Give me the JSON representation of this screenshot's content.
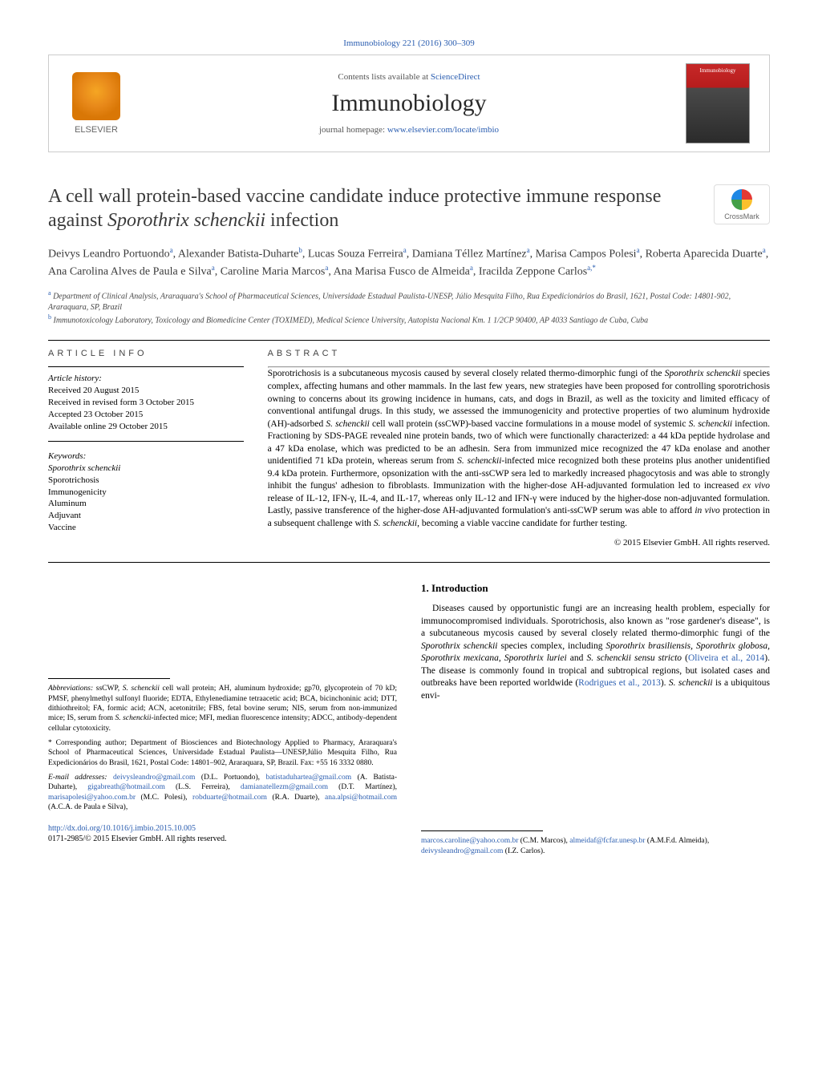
{
  "citation": "Immunobiology 221 (2016) 300–309",
  "header": {
    "contents_prefix": "Contents lists available at ",
    "contents_link": "ScienceDirect",
    "journal": "Immunobiology",
    "homepage_prefix": "journal homepage: ",
    "homepage_url": "www.elsevier.com/locate/imbio",
    "publisher": "ELSEVIER",
    "cover_label": "Immunobiology"
  },
  "title_part1": "A cell wall protein-based vaccine candidate induce protective immune response against ",
  "title_italic": "Sporothrix schenckii",
  "title_part2": " infection",
  "crossmark": "CrossMark",
  "authors_html": "Deivys Leandro Portuondo<sup>a</sup>, Alexander Batista-Duharte<sup>b</sup>, Lucas Souza Ferreira<sup>a</sup>, Damiana Téllez Martínez<sup>a</sup>, Marisa Campos Polesi<sup>a</sup>, Roberta Aparecida Duarte<sup>a</sup>, Ana Carolina Alves de Paula e Silva<sup>a</sup>, Caroline Maria Marcos<sup>a</sup>, Ana Marisa Fusco de Almeida<sup>a</sup>, Iracilda Zeppone Carlos<sup>a,*</sup>",
  "affiliations": [
    {
      "sup": "a",
      "text": "Department of Clinical Analysis, Araraquara's School of Pharmaceutical Sciences, Universidade Estadual Paulista-UNESP, Júlio Mesquita Filho, Rua Expedicionários do Brasil, 1621, Postal Code: 14801-902, Araraquara, SP, Brazil"
    },
    {
      "sup": "b",
      "text": "Immunotoxicology Laboratory, Toxicology and Biomedicine Center (TOXIMED), Medical Science University, Autopista Nacional Km. 1 1/2CP 90400, AP 4033 Santiago de Cuba, Cuba"
    }
  ],
  "info_label": "article info",
  "abstract_label": "abstract",
  "history": {
    "label": "Article history:",
    "items": [
      "Received 20 August 2015",
      "Received in revised form 3 October 2015",
      "Accepted 23 October 2015",
      "Available online 29 October 2015"
    ]
  },
  "keywords": {
    "label": "Keywords:",
    "items": [
      {
        "text": "Sporothrix schenckii",
        "italic": true
      },
      {
        "text": "Sporotrichosis",
        "italic": false
      },
      {
        "text": "Immunogenicity",
        "italic": false
      },
      {
        "text": "Aluminum",
        "italic": false
      },
      {
        "text": "Adjuvant",
        "italic": false
      },
      {
        "text": "Vaccine",
        "italic": false
      }
    ]
  },
  "abstract": "Sporotrichosis is a subcutaneous mycosis caused by several closely related thermo-dimorphic fungi of the <span class=\"italic\">Sporothrix schenckii</span> species complex, affecting humans and other mammals. In the last few years, new strategies have been proposed for controlling sporotrichosis owning to concerns about its growing incidence in humans, cats, and dogs in Brazil, as well as the toxicity and limited efficacy of conventional antifungal drugs. In this study, we assessed the immunogenicity and protective properties of two aluminum hydroxide (AH)-adsorbed <span class=\"italic\">S. schenckii</span> cell wall protein (ssCWP)-based vaccine formulations in a mouse model of systemic <span class=\"italic\">S. schenckii</span> infection. Fractioning by SDS-PAGE revealed nine protein bands, two of which were functionally characterized: a 44 kDa peptide hydrolase and a 47 kDa enolase, which was predicted to be an adhesin. Sera from immunized mice recognized the 47 kDa enolase and another unidentified 71 kDa protein, whereas serum from <span class=\"italic\">S. schenckii</span>-infected mice recognized both these proteins plus another unidentified 9.4 kDa protein. Furthermore, opsonization with the anti-ssCWP sera led to markedly increased phagocytosis and was able to strongly inhibit the fungus' adhesion to fibroblasts. Immunization with the higher-dose AH-adjuvanted formulation led to increased <span class=\"italic\">ex vivo</span> release of IL-12, IFN-γ, IL-4, and IL-17, whereas only IL-12 and IFN-γ were induced by the higher-dose non-adjuvanted formulation. Lastly, passive transference of the higher-dose AH-adjuvanted formulation's anti-ssCWP serum was able to afford <span class=\"italic\">in vivo</span> protection in a subsequent challenge with <span class=\"italic\">S. schenckii</span>, becoming a viable vaccine candidate for further testing.",
  "copyright": "© 2015 Elsevier GmbH. All rights reserved.",
  "abbrev_label": "Abbreviations:",
  "abbrev_text": " ssCWP, <span class=\"italic\">S. schenckii</span> cell wall protein; AH, aluminum hydroxide; gp70, glycoprotein of 70 kD; PMSF, phenylmethyl sulfonyl fluoride; EDTA, Ethylenediamine tetraacetic acid; BCA, bicinchoninic acid; DTT, dithiothreitol; FA, formic acid; ACN, acetonitrile; FBS, fetal bovine serum; NIS, serum from non-immunized mice; IS, serum from <span class=\"italic\">S. schenckii</span>-infected mice; MFI, median fluorescence intensity; ADCC, antibody-dependent cellular cytotoxicity.",
  "corresponding": "* Corresponding author; Department of Biosciences and Biotechnology Applied to Pharmacy, Araraquara's School of Pharmaceutical Sciences, Universidade Estadual Paulista—UNESP,Júlio Mesquita Filho, Rua Expedicionários do Brasil, 1621, Postal Code: 14801–902, Araraquara, SP, Brazil. Fax: +55 16 3332 0880.",
  "email_label": "E-mail addresses:",
  "emails_left": " <a>deivysleandro@gmail.com</a> (D.L. Portuondo), <a>batistaduhartea@gmail.com</a> (A. Batista-Duharte), <a>gigabreath@hotmail.com</a> (L.S. Ferreira), <a>damianatellezm@gmail.com</a> (D.T. Martínez), <a>marisapolesi@yahoo.com.br</a> (M.C. Polesi), <a>robduarte@hotmail.com</a> (R.A. Duarte), <a>ana.alpsi@hotmail.com</a> (A.C.A. de Paula e Silva),",
  "emails_right": "<a>marcos.caroline@yahoo.com.br</a> (C.M. Marcos), <a>almeidaf@fcfar.unesp.br</a> (A.M.F.d. Almeida), <a>deivysleandro@gmail.com</a> (I.Z. Carlos).",
  "doi": "http://dx.doi.org/10.1016/j.imbio.2015.10.005",
  "issn_line": "0171-2985/© 2015 Elsevier GmbH. All rights reserved.",
  "intro": {
    "heading": "1. Introduction",
    "text": "Diseases caused by opportunistic fungi are an increasing health problem, especially for immunocompromised individuals. Sporotrichosis, also known as \"rose gardener's disease\", is a subcutaneous mycosis caused by several closely related thermo-dimorphic fungi of the <span class=\"italic\">Sporothrix schenckii</span> species complex, including <span class=\"italic\">Sporothrix brasiliensis, Sporothrix globosa, Sporothrix mexicana, Sporothrix luriei</span> and <span class=\"italic\">S. schenckii sensu stricto</span> (<a>Oliveira et al., 2014</a>). The disease is commonly found in tropical and subtropical regions, but isolated cases and outbreaks have been reported worldwide (<a>Rodrigues et al., 2013</a>). <span class=\"italic\">S. schenckii</span> is a ubiquitous envi-"
  },
  "colors": {
    "link": "#2a5db0",
    "text": "#000000",
    "muted": "#555555",
    "border": "#cccccc"
  }
}
